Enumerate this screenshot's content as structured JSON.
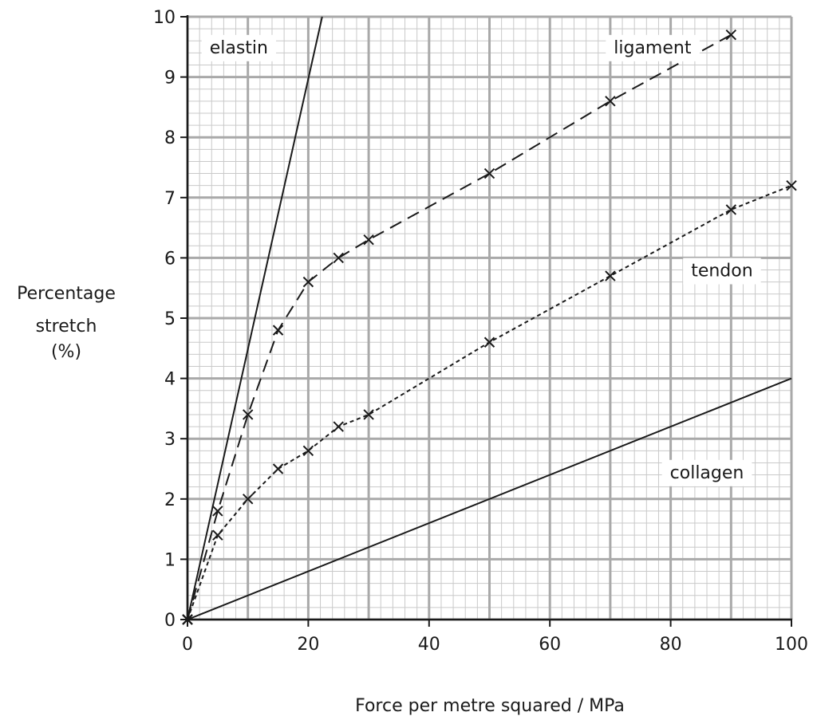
{
  "chart_data": {
    "type": "line",
    "xlabel": "Force per metre squared / MPa",
    "ylabel_lines": [
      "Percentage",
      "stretch",
      "(%)"
    ],
    "xlim": [
      0,
      100
    ],
    "ylim": [
      0,
      10
    ],
    "x_ticks": [
      0,
      20,
      40,
      60,
      80,
      100
    ],
    "y_ticks": [
      0,
      1,
      2,
      3,
      4,
      5,
      6,
      7,
      8,
      9,
      10
    ],
    "grid": true,
    "series": [
      {
        "name": "elastin",
        "style": "solid",
        "markers": false,
        "points": [
          [
            0,
            0
          ],
          [
            22.3,
            10
          ]
        ]
      },
      {
        "name": "collagen",
        "style": "solid",
        "markers": false,
        "points": [
          [
            0,
            0
          ],
          [
            100,
            4
          ]
        ]
      },
      {
        "name": "ligament",
        "style": "long-dash",
        "markers": true,
        "points": [
          [
            0,
            0
          ],
          [
            5,
            1.8
          ],
          [
            10,
            3.4
          ],
          [
            15,
            4.8
          ],
          [
            20,
            5.6
          ],
          [
            25,
            6.0
          ],
          [
            30,
            6.3
          ],
          [
            50,
            7.4
          ],
          [
            70,
            8.6
          ],
          [
            90,
            9.7
          ]
        ]
      },
      {
        "name": "tendon",
        "style": "short-dash",
        "markers": true,
        "points": [
          [
            0,
            0
          ],
          [
            5,
            1.4
          ],
          [
            10,
            2.0
          ],
          [
            15,
            2.5
          ],
          [
            20,
            2.8
          ],
          [
            25,
            3.2
          ],
          [
            30,
            3.4
          ],
          [
            50,
            4.6
          ],
          [
            70,
            5.7
          ],
          [
            90,
            6.8
          ],
          [
            100,
            7.2
          ]
        ]
      }
    ],
    "series_labels": [
      {
        "text": "elastin",
        "at": [
          8.5,
          9.5
        ]
      },
      {
        "text": "ligament",
        "at": [
          77,
          9.5
        ]
      },
      {
        "text": "tendon",
        "at": [
          88.5,
          5.8
        ]
      },
      {
        "text": "collagen",
        "at": [
          86,
          2.45
        ]
      }
    ]
  }
}
